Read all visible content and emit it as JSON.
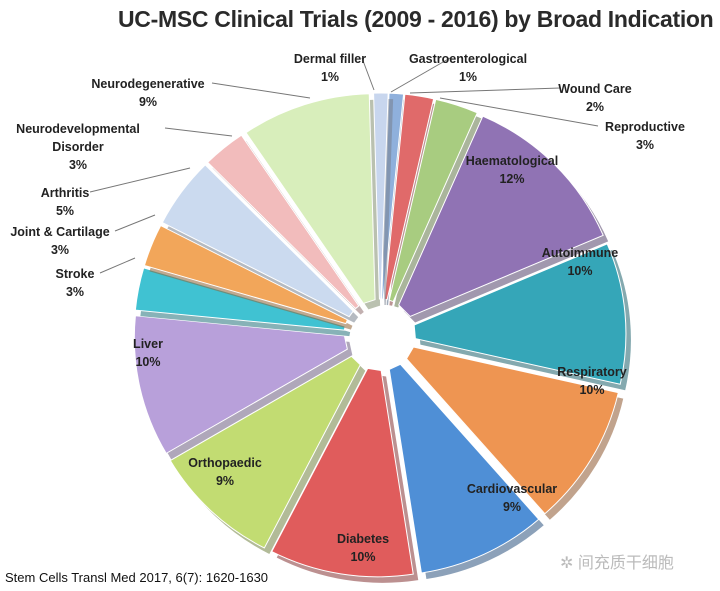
{
  "chart_data": {
    "type": "pie",
    "title": "UC-MSC Clinical Trials (2009 - 2016) by Broad Indication",
    "slices": [
      {
        "label": "Gastroenterological",
        "value": 1,
        "pct": "1%",
        "color": "#8fb0dc"
      },
      {
        "label": "Wound Care",
        "value": 2,
        "pct": "2%",
        "color": "#e06a6a"
      },
      {
        "label": "Reproductive",
        "value": 3,
        "pct": "3%",
        "color": "#a8cc80"
      },
      {
        "label": "Haematological",
        "value": 12,
        "pct": "12%",
        "color": "#9073b4"
      },
      {
        "label": "Autoimmune",
        "value": 10,
        "pct": "10%",
        "color": "#35a6b8"
      },
      {
        "label": "Respiratory",
        "value": 10,
        "pct": "10%",
        "color": "#ee9552"
      },
      {
        "label": "Cardiovascular",
        "value": 9,
        "pct": "9%",
        "color": "#4f8fd6"
      },
      {
        "label": "Diabetes",
        "value": 10,
        "pct": "10%",
        "color": "#e05c5c"
      },
      {
        "label": "Orthopaedic",
        "value": 9,
        "pct": "9%",
        "color": "#c2dc72"
      },
      {
        "label": "Liver",
        "value": 10,
        "pct": "10%",
        "color": "#b8a0da"
      },
      {
        "label": "Stroke",
        "value": 3,
        "pct": "3%",
        "color": "#40c2d2"
      },
      {
        "label": "Joint & Cartilage",
        "value": 3,
        "pct": "3%",
        "color": "#f2a65a"
      },
      {
        "label": "Arthritis",
        "value": 5,
        "pct": "5%",
        "color": "#cbdaef"
      },
      {
        "label": "Neurodevelopmental Disorder",
        "value": 3,
        "pct": "3%",
        "color": "#f2bcbc"
      },
      {
        "label": "Neurodegenerative",
        "value": 9,
        "pct": "9%",
        "color": "#d8eebb"
      },
      {
        "label": "Dermal filler",
        "value": 1,
        "pct": "1%",
        "color": "#c8d6ee"
      }
    ]
  },
  "source": "Stem Cells Transl Med 2017, 6(7): 1620-1630",
  "watermark": "间充质干细胞"
}
